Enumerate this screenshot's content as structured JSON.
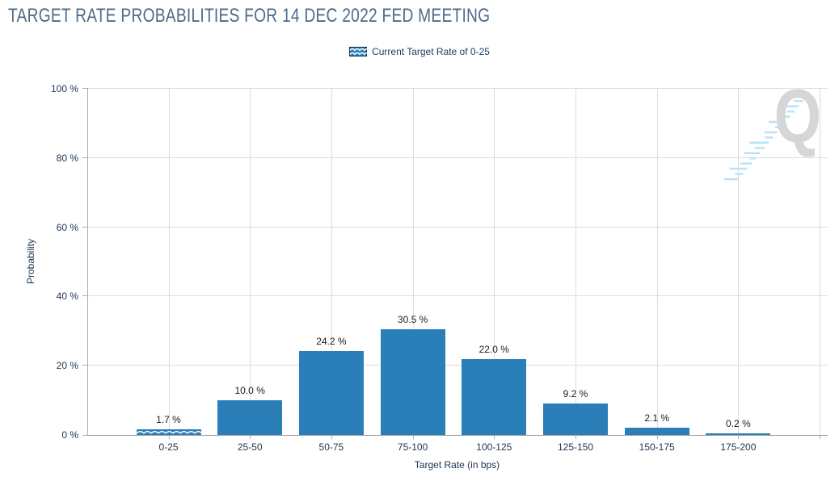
{
  "watermark": {
    "letter": "Q"
  },
  "colors": {
    "bar_color": "#2b7fb8",
    "title_color": "#4f6b87",
    "legend_text": "#1d3a5f",
    "axis_text": "#203850",
    "value_text": "#1c1c1c",
    "grid": "#dcdcdc",
    "axis_line": "#aaaaaa",
    "axis_line_dark": "#9f9f9f",
    "watermark_letter": "#d6d6d6",
    "watermark_dashes": "#b9e3f7"
  },
  "chart_data": {
    "type": "bar",
    "title": "TARGET RATE PROBABILITIES FOR 14 DEC 2022 FED MEETING",
    "categories": [
      "0-25",
      "25-50",
      "50-75",
      "75-100",
      "100-125",
      "125-150",
      "150-175",
      "175-200"
    ],
    "values": [
      1.7,
      10.0,
      24.2,
      30.5,
      22.0,
      9.2,
      2.1,
      0.2
    ],
    "value_labels": [
      "1.7 %",
      "10.0 %",
      "24.2 %",
      "30.5 %",
      "22.0 %",
      "9.2 %",
      "2.1 %",
      "0.2 %"
    ],
    "highlighted_category": "0-25",
    "highlight_style": "white-wave-crosshatch-pattern",
    "legend_label": "Current Target Rate of 0-25",
    "legend_position": "top-center",
    "xlabel": "Target Rate (in bps)",
    "ylabel": "Probability",
    "ylim": [
      0,
      100
    ],
    "yticks": [
      0,
      20,
      40,
      60,
      80,
      100
    ],
    "ytick_labels": [
      "0 %",
      "20 %",
      "40 %",
      "60 %",
      "80 %",
      "100 %"
    ],
    "grid": true,
    "bar_color": "#2b7fb8"
  }
}
